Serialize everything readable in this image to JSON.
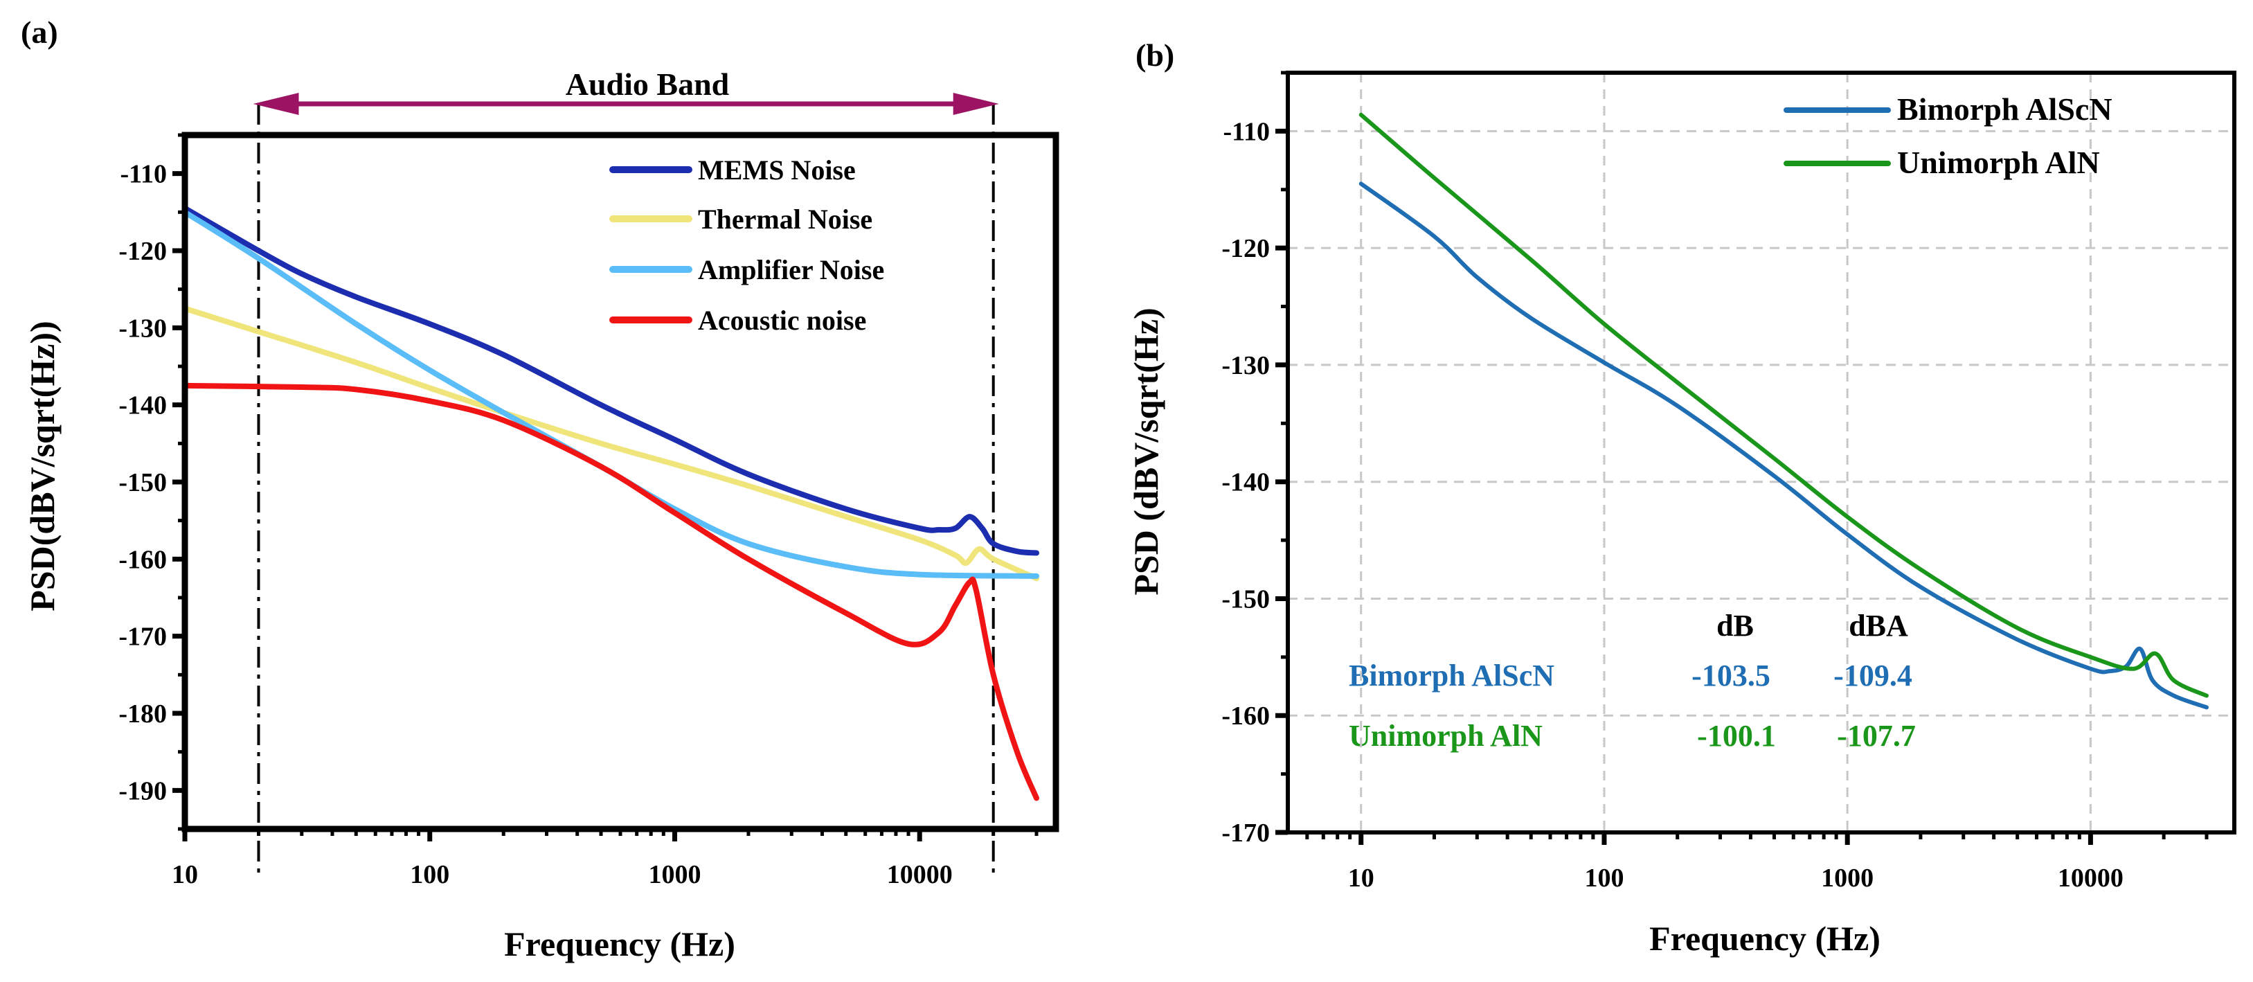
{
  "chart_data": [
    {
      "panel_label": "(a)",
      "type": "line",
      "title": "",
      "xlabel": "Frequency (Hz)",
      "ylabel": "PSD(dBV/sqrt(Hz))",
      "xscale": "log",
      "xlim": [
        10,
        36000
      ],
      "ylim": [
        -195,
        -105
      ],
      "xticks": [
        10,
        100,
        1000,
        10000
      ],
      "xtick_labels": [
        "10",
        "100",
        "1000",
        "10000"
      ],
      "yticks": [
        -110,
        -120,
        -130,
        -140,
        -150,
        -160,
        -170,
        -180,
        -190
      ],
      "ytick_labels": [
        "-110",
        "-120",
        "-130",
        "-140",
        "-150",
        "-160",
        "-170",
        "-180",
        "-190"
      ],
      "grid": false,
      "legend_position": "top-right",
      "annotation": {
        "text": "Audio Band",
        "range": [
          20,
          20000
        ],
        "color": "#9b1362"
      },
      "series": [
        {
          "name": "MEMS Noise",
          "color": "#1c2db0",
          "x": [
            10,
            20,
            30,
            50,
            100,
            200,
            500,
            1000,
            2000,
            5000,
            10000,
            12000,
            14000,
            16000,
            18000,
            20000,
            25000,
            30000
          ],
          "y": [
            -114.5,
            -120,
            -123,
            -126,
            -129.5,
            -133.5,
            -140,
            -144.5,
            -149,
            -153.5,
            -156,
            -156.2,
            -156,
            -154.5,
            -156,
            -158,
            -159,
            -159.2
          ]
        },
        {
          "name": "Thermal Noise",
          "color": "#efe57a",
          "x": [
            10,
            20,
            50,
            100,
            200,
            500,
            1000,
            2000,
            5000,
            10000,
            14000,
            15500,
            17500,
            20000,
            30000
          ],
          "y": [
            -127.5,
            -130.5,
            -134.5,
            -137.8,
            -141,
            -145,
            -147.7,
            -150.5,
            -154.5,
            -157.5,
            -159.5,
            -160.5,
            -158.7,
            -160,
            -162.5
          ]
        },
        {
          "name": "Amplifier Noise",
          "color": "#5bbdf7",
          "x": [
            10,
            20,
            50,
            100,
            200,
            500,
            1000,
            2000,
            5000,
            10000,
            30000
          ],
          "y": [
            -115,
            -121,
            -129.5,
            -135.5,
            -141,
            -148,
            -153.5,
            -158,
            -161,
            -162,
            -162.2
          ]
        },
        {
          "name": "Acoustic noise",
          "color": "#f01414",
          "x": [
            10,
            30,
            50,
            100,
            200,
            500,
            1000,
            2000,
            5000,
            9000,
            12000,
            14000,
            16000,
            17000,
            20000,
            25000,
            30000
          ],
          "y": [
            -137.5,
            -137.7,
            -138,
            -139.5,
            -142,
            -148,
            -154,
            -160,
            -167,
            -171,
            -169.5,
            -166,
            -163,
            -164,
            -175,
            -185,
            -191
          ]
        }
      ]
    },
    {
      "panel_label": "(b)",
      "type": "line",
      "title": "",
      "xlabel": "Frequency (Hz)",
      "ylabel": "PSD (dBV/sqrt(Hz)",
      "xscale": "log",
      "xlim": [
        5,
        39000
      ],
      "ylim": [
        -170,
        -105
      ],
      "xticks": [
        10,
        100,
        1000,
        10000
      ],
      "xtick_labels": [
        "10",
        "100",
        "1000",
        "10000"
      ],
      "yticks": [
        -110,
        -120,
        -130,
        -140,
        -150,
        -160,
        -170
      ],
      "ytick_labels": [
        "-110",
        "-120",
        "-130",
        "-140",
        "-150",
        "-160",
        "-170"
      ],
      "grid": true,
      "legend_position": "top-right",
      "series": [
        {
          "name": "Bimorph AlScN",
          "color": "#1f6db3",
          "x": [
            10,
            20,
            30,
            50,
            100,
            200,
            500,
            1000,
            2000,
            5000,
            10000,
            12000,
            14000,
            16000,
            18000,
            22000,
            30000
          ],
          "y": [
            -114.5,
            -119,
            -122.5,
            -126,
            -129.8,
            -133.5,
            -139.5,
            -144.5,
            -149,
            -153.5,
            -156,
            -156.2,
            -155.8,
            -154.3,
            -157,
            -158.3,
            -159.3
          ]
        },
        {
          "name": "Unimorph AlN",
          "color": "#1a961a",
          "x": [
            10,
            20,
            50,
            100,
            200,
            500,
            1000,
            2000,
            5000,
            10000,
            15000,
            18500,
            22000,
            30000
          ],
          "y": [
            -108.6,
            -114,
            -121,
            -126.5,
            -131.5,
            -138,
            -143,
            -147.5,
            -152.5,
            -155,
            -156,
            -154.7,
            -157,
            -158.3
          ]
        }
      ],
      "table": {
        "headers": [
          "dB",
          "dBA"
        ],
        "rows": [
          {
            "label": "Bimorph AlScN",
            "dB": "-103.5",
            "dBA": "-109.4",
            "color": "#1f6db3"
          },
          {
            "label": "Unimorph AlN",
            "dB": "-100.1",
            "dBA": "-107.7",
            "color": "#1a961a"
          }
        ]
      }
    }
  ]
}
